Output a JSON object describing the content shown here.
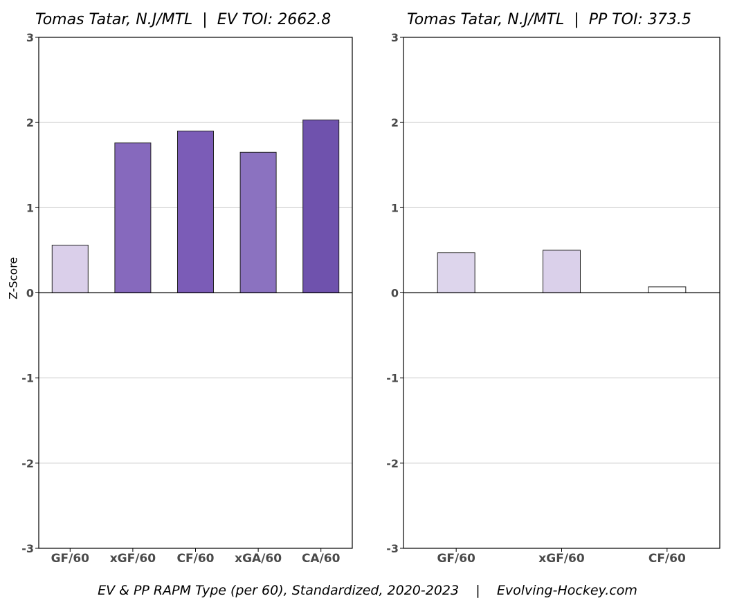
{
  "caption": "EV & PP RAPM Type (per 60), Standardized, 2020-2023    |    Evolving-Hockey.com",
  "ylabel": "Z-Score",
  "chart_data": [
    {
      "type": "bar",
      "title": "Tomas Tatar, N.J/MTL  |  EV TOI: 2662.8",
      "ylabel": "Z-Score",
      "ylim": [
        -3,
        3
      ],
      "yticks": [
        -3,
        -2,
        -1,
        0,
        1,
        2,
        3
      ],
      "grid": true,
      "categories": [
        "GF/60",
        "xGF/60",
        "CF/60",
        "xGA/60",
        "CA/60"
      ],
      "values": [
        0.56,
        1.76,
        1.9,
        1.65,
        2.03
      ],
      "colors": [
        "#dacfea",
        "#8669bd",
        "#7b5cb7",
        "#8b72c0",
        "#6f52ad"
      ]
    },
    {
      "type": "bar",
      "title": "Tomas Tatar, N.J/MTL  |  PP TOI: 373.5",
      "ylim": [
        -3,
        3
      ],
      "yticks": [
        -3,
        -2,
        -1,
        0,
        1,
        2,
        3
      ],
      "grid": true,
      "categories": [
        "GF/60",
        "xGF/60",
        "CF/60"
      ],
      "values": [
        0.47,
        0.5,
        0.07
      ],
      "colors": [
        "#ddd5ec",
        "#dad0ea",
        "#ffffff"
      ]
    }
  ]
}
